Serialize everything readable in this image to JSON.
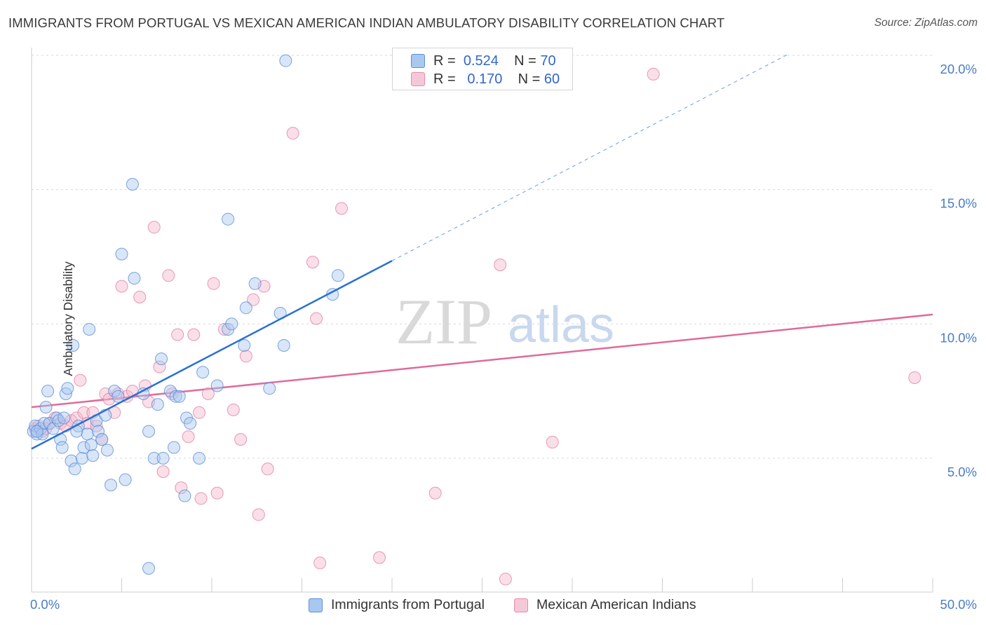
{
  "title": "IMMIGRANTS FROM PORTUGAL VS MEXICAN AMERICAN INDIAN AMBULATORY DISABILITY CORRELATION CHART",
  "source": "Source: ZipAtlas.com",
  "watermark": {
    "zip": "ZIP",
    "atlas": "atlas"
  },
  "legend": {
    "r_label": "R =",
    "n_label": "N =",
    "series1": {
      "r": "0.524",
      "n": "70"
    },
    "series2": {
      "r": "0.170",
      "n": "60"
    }
  },
  "colors": {
    "blue_fill": "#a8c8f0",
    "blue_stroke": "#5b8fd8",
    "blue_line": "#2b70d0",
    "pink_fill": "#f5b8cc",
    "pink_stroke": "#e07aa0",
    "pink_line": "#e06b98",
    "tick_label": "#4a7cc7",
    "grid": "#d8d8d8"
  },
  "chart_data": {
    "type": "scatter",
    "xlabel": "",
    "ylabel": "Ambulatory Disability",
    "xlim": [
      0,
      50
    ],
    "ylim": [
      0,
      20.5
    ],
    "x_tick_labels": [
      "0.0%",
      "50.0%"
    ],
    "y_ticks": [
      5,
      10,
      15,
      20
    ],
    "y_tick_labels": [
      "5.0%",
      "10.0%",
      "15.0%",
      "20.0%"
    ],
    "grid": "horizontal dashed",
    "legend_position": "top-center",
    "series": [
      {
        "name": "Immigrants from Portugal",
        "color": "blue",
        "points": [
          [
            0.1,
            6.0
          ],
          [
            0.2,
            6.2
          ],
          [
            0.3,
            5.9
          ],
          [
            0.5,
            6.1
          ],
          [
            0.6,
            5.9
          ],
          [
            0.7,
            6.3
          ],
          [
            0.8,
            6.9
          ],
          [
            0.9,
            7.5
          ],
          [
            1.0,
            6.3
          ],
          [
            1.2,
            6.1
          ],
          [
            1.4,
            6.5
          ],
          [
            1.5,
            6.4
          ],
          [
            1.6,
            5.7
          ],
          [
            1.7,
            5.4
          ],
          [
            1.8,
            6.5
          ],
          [
            1.9,
            7.4
          ],
          [
            2.0,
            7.6
          ],
          [
            2.2,
            4.9
          ],
          [
            2.3,
            9.2
          ],
          [
            2.4,
            4.6
          ],
          [
            2.6,
            6.2
          ],
          [
            2.8,
            5.0
          ],
          [
            2.9,
            5.4
          ],
          [
            3.1,
            5.9
          ],
          [
            3.2,
            9.8
          ],
          [
            3.3,
            5.5
          ],
          [
            3.4,
            5.1
          ],
          [
            3.6,
            6.4
          ],
          [
            3.7,
            6.0
          ],
          [
            3.9,
            5.7
          ],
          [
            4.1,
            6.6
          ],
          [
            4.2,
            5.3
          ],
          [
            4.4,
            4.0
          ],
          [
            4.6,
            7.5
          ],
          [
            4.8,
            7.3
          ],
          [
            5.0,
            12.6
          ],
          [
            5.2,
            4.2
          ],
          [
            5.6,
            15.2
          ],
          [
            5.7,
            11.7
          ],
          [
            6.2,
            7.4
          ],
          [
            6.5,
            6.0
          ],
          [
            6.5,
            0.9
          ],
          [
            6.8,
            5.0
          ],
          [
            7.0,
            7.0
          ],
          [
            7.2,
            8.7
          ],
          [
            7.3,
            5.0
          ],
          [
            7.7,
            7.5
          ],
          [
            7.9,
            5.4
          ],
          [
            8.0,
            7.3
          ],
          [
            8.2,
            7.3
          ],
          [
            8.5,
            3.6
          ],
          [
            8.6,
            6.5
          ],
          [
            8.8,
            6.3
          ],
          [
            9.3,
            5.0
          ],
          [
            9.5,
            8.2
          ],
          [
            10.3,
            7.7
          ],
          [
            10.9,
            13.9
          ],
          [
            10.9,
            9.8
          ],
          [
            11.1,
            10.0
          ],
          [
            11.8,
            9.2
          ],
          [
            11.9,
            10.6
          ],
          [
            12.4,
            11.5
          ],
          [
            13.2,
            7.6
          ],
          [
            13.8,
            10.4
          ],
          [
            14.0,
            9.2
          ],
          [
            14.1,
            19.8
          ],
          [
            16.7,
            11.1
          ],
          [
            17.0,
            11.8
          ],
          [
            0.3,
            6.0
          ],
          [
            2.5,
            6.0
          ]
        ]
      },
      {
        "name": "Mexican American Indians",
        "color": "pink",
        "points": [
          [
            0.2,
            6.1
          ],
          [
            0.4,
            6.2
          ],
          [
            0.6,
            6.0
          ],
          [
            0.8,
            6.1
          ],
          [
            1.0,
            6.3
          ],
          [
            1.3,
            6.5
          ],
          [
            1.6,
            6.3
          ],
          [
            1.9,
            6.2
          ],
          [
            2.2,
            6.4
          ],
          [
            2.5,
            6.5
          ],
          [
            2.7,
            7.9
          ],
          [
            2.9,
            6.7
          ],
          [
            3.1,
            6.3
          ],
          [
            3.4,
            6.7
          ],
          [
            3.6,
            6.2
          ],
          [
            3.9,
            5.7
          ],
          [
            4.1,
            7.4
          ],
          [
            4.3,
            7.2
          ],
          [
            4.6,
            6.7
          ],
          [
            4.8,
            7.4
          ],
          [
            5.0,
            11.4
          ],
          [
            5.3,
            7.3
          ],
          [
            5.6,
            7.5
          ],
          [
            6.0,
            11.0
          ],
          [
            6.3,
            7.7
          ],
          [
            6.5,
            7.1
          ],
          [
            6.8,
            13.6
          ],
          [
            7.1,
            8.4
          ],
          [
            7.3,
            4.5
          ],
          [
            7.6,
            11.8
          ],
          [
            7.8,
            7.4
          ],
          [
            8.1,
            9.6
          ],
          [
            8.3,
            3.9
          ],
          [
            8.7,
            5.8
          ],
          [
            9.0,
            9.6
          ],
          [
            9.3,
            6.7
          ],
          [
            9.4,
            3.5
          ],
          [
            9.8,
            7.4
          ],
          [
            10.1,
            11.5
          ],
          [
            10.3,
            3.7
          ],
          [
            10.7,
            9.8
          ],
          [
            11.2,
            6.8
          ],
          [
            11.6,
            5.7
          ],
          [
            11.9,
            8.8
          ],
          [
            12.3,
            10.9
          ],
          [
            12.6,
            2.9
          ],
          [
            12.9,
            11.4
          ],
          [
            13.1,
            4.6
          ],
          [
            14.5,
            17.1
          ],
          [
            15.6,
            12.3
          ],
          [
            15.8,
            10.2
          ],
          [
            16.0,
            1.1
          ],
          [
            17.2,
            14.3
          ],
          [
            19.3,
            1.3
          ],
          [
            22.4,
            3.7
          ],
          [
            26.0,
            12.2
          ],
          [
            26.3,
            0.5
          ],
          [
            28.9,
            5.6
          ],
          [
            34.5,
            19.3
          ],
          [
            49.0,
            8.0
          ]
        ]
      }
    ],
    "trend_lines": [
      {
        "series": "Immigrants from Portugal",
        "x_solid": [
          0,
          20
        ],
        "y_solid": [
          5.35,
          12.35
        ],
        "x_dashed": [
          20,
          42
        ],
        "y_dashed": [
          12.35,
          20.05
        ]
      },
      {
        "series": "Mexican American Indians",
        "x": [
          0,
          50
        ],
        "y": [
          6.9,
          10.35
        ]
      }
    ]
  }
}
